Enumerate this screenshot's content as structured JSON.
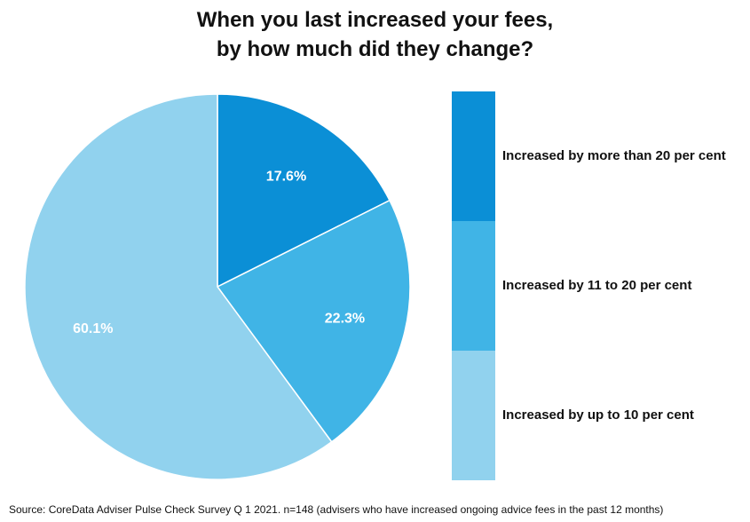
{
  "chart_data": {
    "type": "pie",
    "title_lines": [
      "When you last increased your fees,",
      "by how much did they change?"
    ],
    "series": [
      {
        "name": "Increased by more than 20 per cent",
        "value": 17.6,
        "label": "17.6%",
        "color": "#0b8fd6"
      },
      {
        "name": "Increased by 11 to 20 per cent",
        "value": 22.3,
        "label": "22.3%",
        "color": "#40b4e6"
      },
      {
        "name": "Increased by up to 10 per cent",
        "value": 60.1,
        "label": "60.1%",
        "color": "#91d2ee"
      }
    ],
    "legend_position": "right"
  },
  "source": "Source: CoreData Adviser Pulse Check Survey Q 1 2021. n=148 (advisers who have increased ongoing advice fees in the past 12 months)"
}
